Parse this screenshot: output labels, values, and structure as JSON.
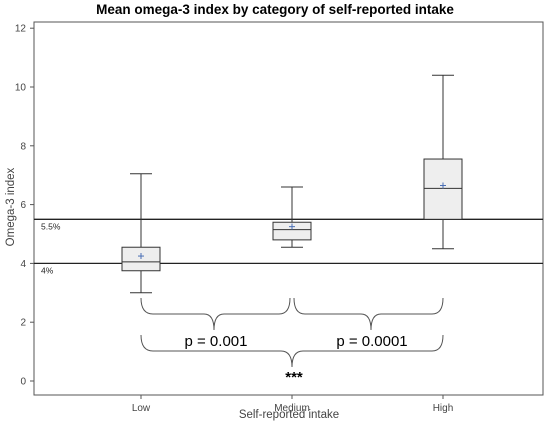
{
  "chart_data": {
    "type": "boxplot",
    "title": "Mean omega-3 index by category of self-reported intake",
    "xlabel": "Self-reported intake",
    "ylabel": "Omega-3 index",
    "categories": [
      "Low",
      "Medium",
      "High"
    ],
    "ylim": [
      0,
      12
    ],
    "yticks": [
      "0",
      "2",
      "4",
      "6",
      "8",
      "10",
      "12"
    ],
    "boxes": [
      {
        "category": "Low",
        "min": 3.0,
        "q1": 3.75,
        "median": 4.05,
        "q3": 4.55,
        "max": 7.05,
        "mean": 4.25
      },
      {
        "category": "Medium",
        "min": 4.55,
        "q1": 4.8,
        "median": 5.15,
        "q3": 5.4,
        "max": 6.6,
        "mean": 5.25
      },
      {
        "category": "High",
        "min": 4.5,
        "q1": 5.5,
        "median": 6.55,
        "q3": 7.55,
        "max": 10.4,
        "mean": 6.65
      }
    ],
    "reference_lines": [
      {
        "y": 5.5,
        "label": "5.5%"
      },
      {
        "y": 4.0,
        "label": "4%"
      }
    ],
    "annotations": {
      "low_vs_medium": "p = 0.001",
      "medium_vs_high": "p = 0.0001",
      "overall": "***"
    },
    "grid": false,
    "legend": "none"
  }
}
